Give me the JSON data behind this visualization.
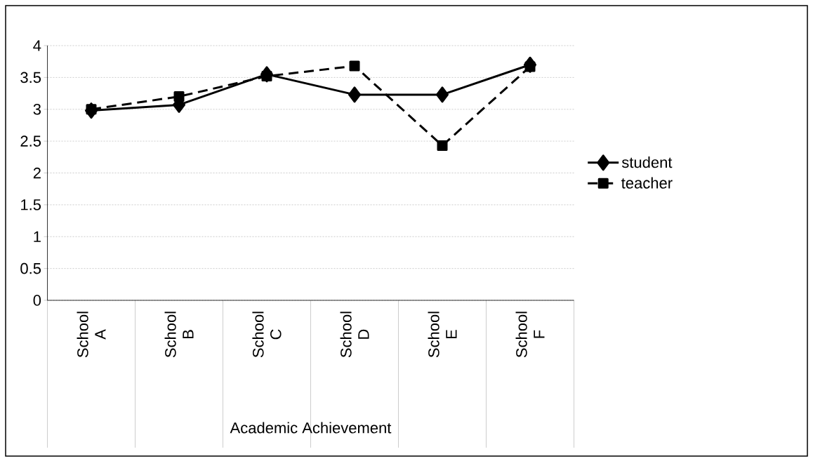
{
  "chart_data": {
    "type": "line",
    "xlabel": "Academic Achievement",
    "categories": [
      "School A",
      "School B",
      "School C",
      "School D",
      "School E",
      "School F"
    ],
    "series": [
      {
        "name": "student",
        "color": "#000000",
        "marker": "diamond",
        "line_style": "solid",
        "values": [
          2.98,
          3.07,
          3.55,
          3.23,
          3.23,
          3.7
        ]
      },
      {
        "name": "teacher",
        "color": "#000000",
        "marker": "square",
        "line_style": "dashed",
        "values": [
          3.0,
          3.2,
          3.52,
          3.68,
          2.43,
          3.67
        ]
      }
    ],
    "ylim": [
      0,
      4
    ],
    "yticks": [
      0,
      0.5,
      1,
      1.5,
      2,
      2.5,
      3,
      3.5,
      4
    ],
    "grid": "y",
    "legend": "right"
  }
}
